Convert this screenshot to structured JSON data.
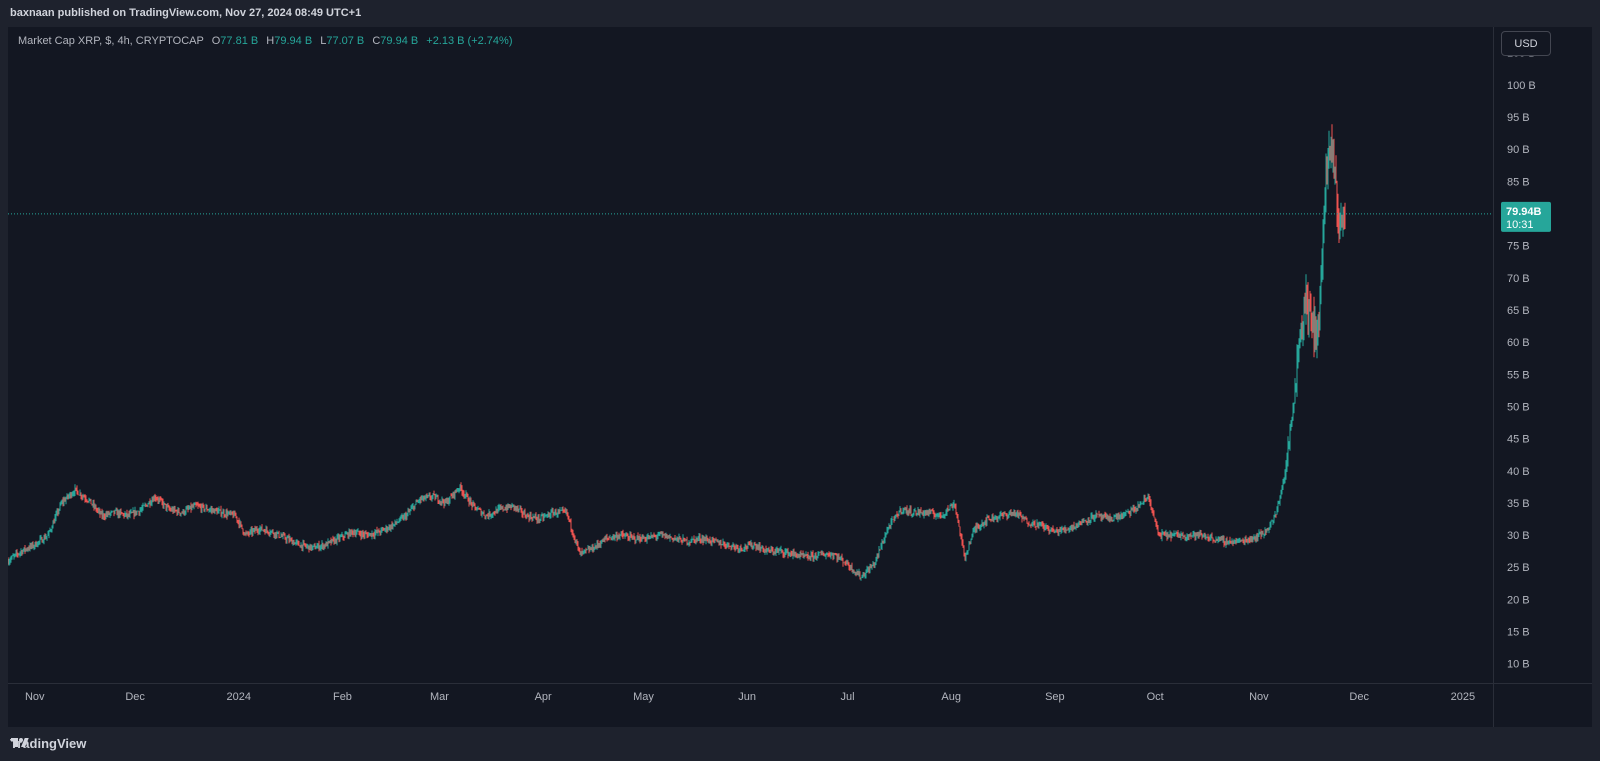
{
  "header": {
    "publish_line": "baxnaan published on TradingView.com, Nov 27, 2024 08:49 UTC+1"
  },
  "legend": {
    "symbol": "Market Cap XRP, $, 4h, CRYPTOCAP",
    "o_label": "O",
    "o_value": "77.81 B",
    "h_label": "H",
    "h_value": "79.94 B",
    "l_label": "L",
    "l_value": "77.07 B",
    "c_label": "C",
    "c_value": "79.94 B",
    "change": "+2.13 B (+2.74%)"
  },
  "toolbar": {
    "currency": "USD"
  },
  "last_price": {
    "value": "79.94B",
    "countdown": "10:31"
  },
  "footer": {
    "brand": "TradingView",
    "logo_icon": "tradingview-logo-icon"
  },
  "colors": {
    "up": "#26a69a",
    "down": "#ef5350",
    "background": "#131722",
    "last_price_line": "#26a69a"
  },
  "chart_data": {
    "type": "candlestick",
    "title": "Market Cap XRP, $, 4h, CRYPTOCAP",
    "y_unit": "B",
    "ylim": [
      7,
      109
    ],
    "y_ticks": [
      {
        "value": 105,
        "label": "105 B"
      },
      {
        "value": 100,
        "label": "100 B"
      },
      {
        "value": 95,
        "label": "95 B"
      },
      {
        "value": 90,
        "label": "90 B"
      },
      {
        "value": 85,
        "label": "85 B"
      },
      {
        "value": 75,
        "label": "75 B"
      },
      {
        "value": 70,
        "label": "70 B"
      },
      {
        "value": 65,
        "label": "65 B"
      },
      {
        "value": 60,
        "label": "60 B"
      },
      {
        "value": 55,
        "label": "55 B"
      },
      {
        "value": 50,
        "label": "50 B"
      },
      {
        "value": 45,
        "label": "45 B"
      },
      {
        "value": 40,
        "label": "40 B"
      },
      {
        "value": 35,
        "label": "35 B"
      },
      {
        "value": 30,
        "label": "30 B"
      },
      {
        "value": 25,
        "label": "25 B"
      },
      {
        "value": 20,
        "label": "20 B"
      },
      {
        "value": 15,
        "label": "15 B"
      },
      {
        "value": 10,
        "label": "10 B"
      }
    ],
    "x_range": [
      "2023-10-24",
      "2025-01-10"
    ],
    "x_ticks": [
      {
        "date": "2023-11-01",
        "label": "Nov"
      },
      {
        "date": "2023-12-01",
        "label": "Dec"
      },
      {
        "date": "2024-01-01",
        "label": "2024"
      },
      {
        "date": "2024-02-01",
        "label": "Feb"
      },
      {
        "date": "2024-03-01",
        "label": "Mar"
      },
      {
        "date": "2024-04-01",
        "label": "Apr"
      },
      {
        "date": "2024-05-01",
        "label": "May"
      },
      {
        "date": "2024-06-01",
        "label": "Jun"
      },
      {
        "date": "2024-07-01",
        "label": "Jul"
      },
      {
        "date": "2024-08-01",
        "label": "Aug"
      },
      {
        "date": "2024-09-01",
        "label": "Sep"
      },
      {
        "date": "2024-10-01",
        "label": "Oct"
      },
      {
        "date": "2024-11-01",
        "label": "Nov"
      },
      {
        "date": "2024-12-01",
        "label": "Dec"
      },
      {
        "date": "2025-01-01",
        "label": "2025"
      }
    ],
    "last_value": 79.94,
    "series": [
      {
        "name": "Market Cap XRP",
        "x": [
          "2023-10-24",
          "2023-10-28",
          "2023-11-01",
          "2023-11-05",
          "2023-11-09",
          "2023-11-13",
          "2023-11-17",
          "2023-11-21",
          "2023-11-25",
          "2023-11-29",
          "2023-12-03",
          "2023-12-07",
          "2023-12-11",
          "2023-12-15",
          "2023-12-19",
          "2023-12-23",
          "2023-12-27",
          "2023-12-31",
          "2024-01-03",
          "2024-01-07",
          "2024-01-11",
          "2024-01-15",
          "2024-01-19",
          "2024-01-23",
          "2024-01-27",
          "2024-01-31",
          "2024-02-04",
          "2024-02-08",
          "2024-02-12",
          "2024-02-16",
          "2024-02-20",
          "2024-02-24",
          "2024-02-28",
          "2024-03-03",
          "2024-03-07",
          "2024-03-11",
          "2024-03-15",
          "2024-03-19",
          "2024-03-23",
          "2024-03-27",
          "2024-03-31",
          "2024-04-04",
          "2024-04-08",
          "2024-04-12",
          "2024-04-16",
          "2024-04-20",
          "2024-04-24",
          "2024-04-28",
          "2024-05-02",
          "2024-05-06",
          "2024-05-10",
          "2024-05-14",
          "2024-05-18",
          "2024-05-22",
          "2024-05-26",
          "2024-05-30",
          "2024-06-03",
          "2024-06-07",
          "2024-06-11",
          "2024-06-15",
          "2024-06-19",
          "2024-06-23",
          "2024-06-27",
          "2024-07-01",
          "2024-07-05",
          "2024-07-09",
          "2024-07-13",
          "2024-07-17",
          "2024-07-21",
          "2024-07-25",
          "2024-07-29",
          "2024-08-02",
          "2024-08-05",
          "2024-08-08",
          "2024-08-12",
          "2024-08-16",
          "2024-08-20",
          "2024-08-24",
          "2024-08-28",
          "2024-09-01",
          "2024-09-05",
          "2024-09-09",
          "2024-09-13",
          "2024-09-17",
          "2024-09-21",
          "2024-09-25",
          "2024-09-29",
          "2024-10-02",
          "2024-10-06",
          "2024-10-10",
          "2024-10-14",
          "2024-10-18",
          "2024-10-22",
          "2024-10-26",
          "2024-10-30",
          "2024-11-03",
          "2024-11-06",
          "2024-11-09",
          "2024-11-11",
          "2024-11-13",
          "2024-11-15",
          "2024-11-17",
          "2024-11-19",
          "2024-11-21",
          "2024-11-23",
          "2024-11-25",
          "2024-11-27"
        ],
        "values": [
          26.0,
          27.5,
          28.5,
          30.0,
          35.0,
          37.0,
          35.5,
          33.0,
          33.5,
          33.0,
          34.0,
          36.0,
          34.0,
          33.5,
          34.5,
          34.0,
          33.5,
          33.0,
          30.0,
          31.0,
          30.5,
          29.5,
          28.5,
          28.0,
          28.5,
          29.5,
          30.5,
          30.0,
          30.5,
          31.5,
          33.0,
          35.5,
          36.0,
          35.0,
          37.5,
          34.5,
          33.0,
          34.0,
          34.5,
          33.0,
          32.5,
          33.5,
          33.5,
          27.0,
          28.0,
          29.5,
          30.0,
          29.5,
          29.5,
          30.0,
          29.5,
          29.0,
          29.5,
          29.0,
          28.5,
          28.0,
          28.5,
          27.5,
          27.5,
          27.0,
          26.5,
          27.0,
          27.0,
          25.5,
          23.5,
          25.5,
          31.0,
          34.0,
          33.5,
          33.5,
          33.0,
          35.0,
          26.5,
          31.0,
          32.5,
          33.0,
          33.5,
          32.0,
          31.5,
          30.5,
          31.0,
          32.0,
          33.0,
          32.5,
          33.0,
          34.0,
          36.0,
          30.0,
          30.0,
          30.0,
          30.0,
          29.5,
          29.0,
          29.0,
          29.5,
          30.5,
          33.0,
          40.0,
          49.0,
          60.0,
          67.0,
          62.0,
          63.0,
          86.0,
          90.0,
          78.0,
          79.94
        ]
      }
    ]
  }
}
